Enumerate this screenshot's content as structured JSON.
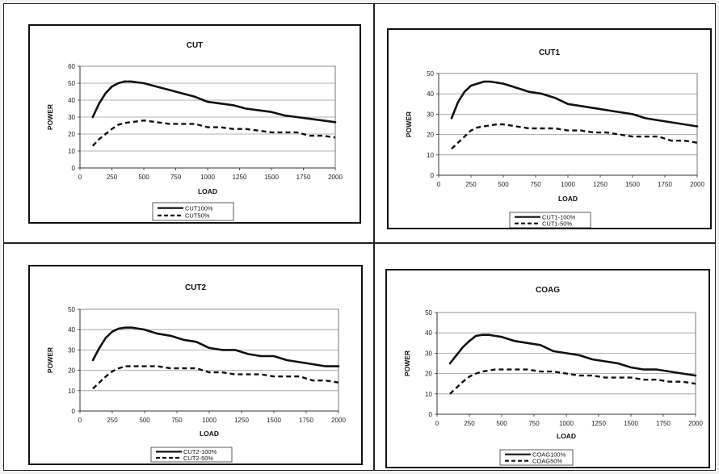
{
  "chart_data": [
    {
      "type": "line",
      "title": "CUT",
      "xlabel": "LOAD",
      "ylabel": "POWER",
      "xlim": [
        0,
        2000
      ],
      "ylim": [
        0,
        60
      ],
      "x_ticks": [
        0,
        250,
        500,
        750,
        1000,
        1250,
        1500,
        1750,
        2000
      ],
      "y_ticks": [
        0,
        10,
        20,
        30,
        40,
        50,
        60
      ],
      "grid": "horizontal",
      "legend_position": "bottom",
      "x": [
        100,
        150,
        200,
        250,
        300,
        350,
        400,
        450,
        500,
        600,
        700,
        800,
        900,
        1000,
        1100,
        1200,
        1300,
        1400,
        1500,
        1600,
        1700,
        1800,
        1900,
        2000
      ],
      "series": [
        {
          "name": "CUT100%",
          "style": "solid",
          "values": [
            30,
            38,
            44,
            48,
            50,
            51,
            51,
            50.5,
            50,
            48,
            46,
            44,
            42,
            39,
            38,
            37,
            35,
            34,
            33,
            31,
            30,
            29,
            28,
            27
          ]
        },
        {
          "name": "CUT50%",
          "style": "dashed",
          "values": [
            13,
            17,
            20,
            23,
            25.5,
            26.5,
            27,
            27.5,
            28,
            27,
            26,
            26,
            26,
            24,
            24,
            23,
            23,
            22,
            21,
            21,
            21,
            19,
            19,
            18
          ]
        }
      ]
    },
    {
      "type": "line",
      "title": "CUT1",
      "xlabel": "LOAD",
      "ylabel": "POWER",
      "xlim": [
        0,
        2000
      ],
      "ylim": [
        0,
        50
      ],
      "x_ticks": [
        0,
        250,
        500,
        750,
        1000,
        1250,
        1500,
        1750,
        2000
      ],
      "y_ticks": [
        0,
        10,
        20,
        30,
        40,
        50
      ],
      "grid": "horizontal",
      "legend_position": "bottom",
      "x": [
        100,
        150,
        200,
        250,
        300,
        350,
        400,
        450,
        500,
        600,
        700,
        800,
        900,
        1000,
        1100,
        1200,
        1300,
        1400,
        1500,
        1600,
        1700,
        1800,
        1900,
        2000
      ],
      "series": [
        {
          "name": "CUT1-100%",
          "style": "solid",
          "values": [
            28,
            36,
            41,
            44,
            45,
            46,
            46,
            45.5,
            45,
            43,
            41,
            40,
            38,
            35,
            34,
            33,
            32,
            31,
            30,
            28,
            27,
            26,
            25,
            24
          ]
        },
        {
          "name": "CUT1-50%",
          "style": "dashed",
          "values": [
            13,
            16,
            19,
            22,
            23.5,
            24,
            24.5,
            25,
            25,
            24,
            23,
            23,
            23,
            22,
            22,
            21,
            21,
            20,
            19,
            19,
            19,
            17,
            17,
            16
          ]
        }
      ]
    },
    {
      "type": "line",
      "title": "CUT2",
      "xlabel": "LOAD",
      "ylabel": "POWER",
      "xlim": [
        0,
        2000
      ],
      "ylim": [
        0,
        50
      ],
      "x_ticks": [
        0,
        250,
        500,
        750,
        1000,
        1250,
        1500,
        1750,
        2000
      ],
      "y_ticks": [
        0,
        10,
        20,
        30,
        40,
        50
      ],
      "grid": "horizontal",
      "legend_position": "bottom",
      "x": [
        100,
        150,
        200,
        250,
        300,
        350,
        400,
        450,
        500,
        600,
        700,
        800,
        900,
        1000,
        1100,
        1200,
        1300,
        1400,
        1500,
        1600,
        1700,
        1800,
        1900,
        2000
      ],
      "series": [
        {
          "name": "CUT2-100%",
          "style": "solid",
          "values": [
            25,
            31,
            36,
            39,
            40.5,
            41,
            41,
            40.5,
            40,
            38,
            37,
            35,
            34,
            31,
            30,
            30,
            28,
            27,
            27,
            25,
            24,
            23,
            22,
            22
          ]
        },
        {
          "name": "CUT2-50%",
          "style": "dashed",
          "values": [
            11,
            14,
            17,
            19.5,
            21,
            22,
            22,
            22,
            22,
            22,
            21,
            21,
            21,
            19,
            19,
            18,
            18,
            18,
            17,
            17,
            17,
            15,
            15,
            14
          ]
        }
      ]
    },
    {
      "type": "line",
      "title": "COAG",
      "xlabel": "LOAD",
      "ylabel": "POWER",
      "xlim": [
        0,
        2000
      ],
      "ylim": [
        0,
        50
      ],
      "x_ticks": [
        0,
        250,
        500,
        750,
        1000,
        1250,
        1500,
        1750,
        2000
      ],
      "y_ticks": [
        0,
        10,
        20,
        30,
        40,
        50
      ],
      "grid": "horizontal",
      "legend_position": "bottom",
      "x": [
        100,
        150,
        200,
        250,
        300,
        350,
        400,
        450,
        500,
        600,
        700,
        800,
        900,
        1000,
        1100,
        1200,
        1300,
        1400,
        1500,
        1600,
        1700,
        1800,
        1900,
        2000
      ],
      "series": [
        {
          "name": "COAG100%",
          "style": "solid",
          "values": [
            25,
            29,
            33,
            36,
            38.5,
            39,
            39,
            38.5,
            38,
            36,
            35,
            34,
            31,
            30,
            29,
            27,
            26,
            25,
            23,
            22,
            22,
            21,
            20,
            19
          ]
        },
        {
          "name": "COAG50%",
          "style": "dashed",
          "values": [
            10,
            13,
            16,
            18.5,
            20,
            21,
            21.5,
            22,
            22,
            22,
            22,
            21,
            21,
            20,
            19,
            19,
            18,
            18,
            18,
            17,
            17,
            16,
            16,
            15
          ]
        }
      ]
    }
  ],
  "colors": {
    "line": "#111111",
    "grid": "#9a9a9a",
    "plot_background": "#ffffff",
    "page_background": "#f1f1f1"
  }
}
